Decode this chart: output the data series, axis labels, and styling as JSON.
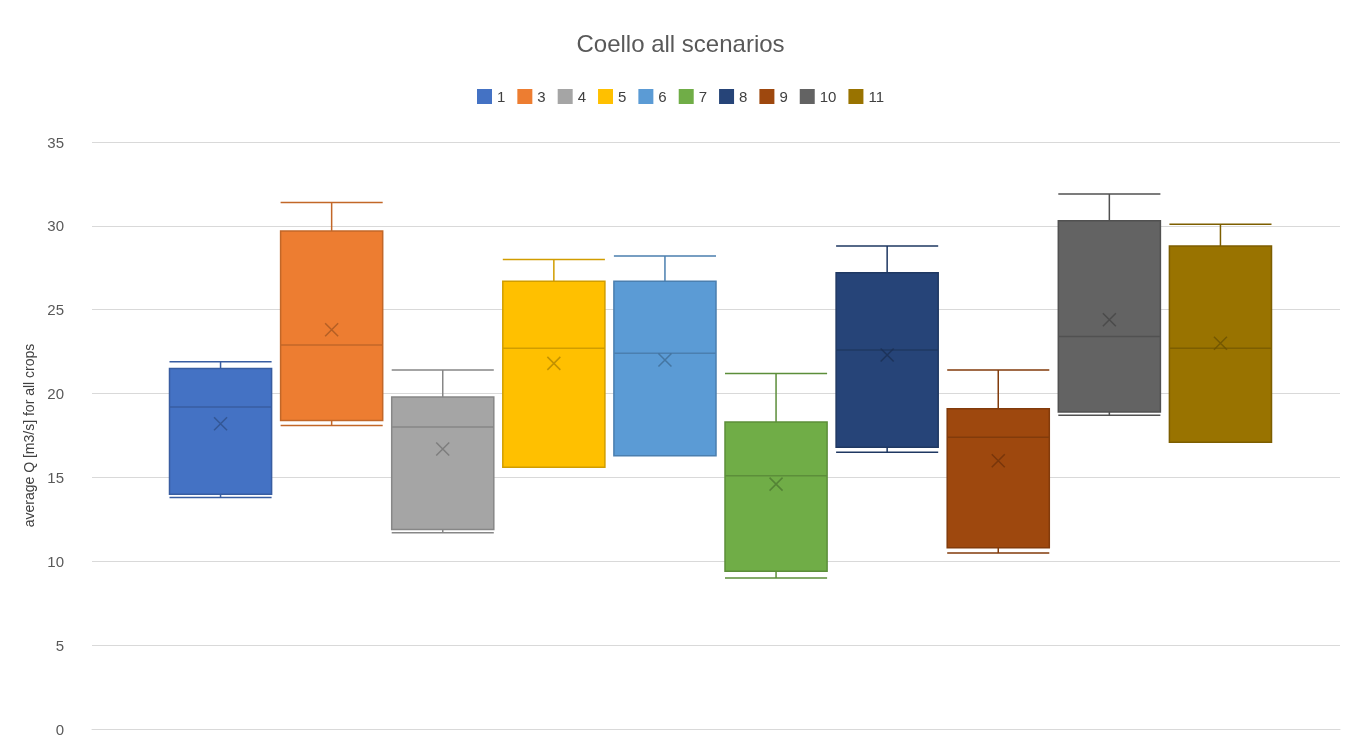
{
  "chart_data": {
    "type": "box",
    "title": "Coello all scenarios",
    "ylabel": "average Q [m3/s] for all crops",
    "categories": [
      null
    ],
    "ylim": [
      0,
      35
    ],
    "yticks": [
      0,
      5,
      10,
      15,
      20,
      25,
      30,
      35
    ],
    "grid": "y",
    "legend": "top",
    "tick_labels": "y",
    "series": [
      {
        "name": "1",
        "color": "#4472c4",
        "boxes": [
          {
            "low": 13.8,
            "q1": 14.0,
            "median": 19.2,
            "q3": 21.5,
            "high": 21.9,
            "mean": 18.2
          }
        ]
      },
      {
        "name": "3",
        "color": "#ed7d31",
        "boxes": [
          {
            "low": 18.1,
            "q1": 18.4,
            "median": 22.9,
            "q3": 29.7,
            "high": 31.4,
            "mean": 23.8
          }
        ]
      },
      {
        "name": "4",
        "color": "#a5a5a5",
        "boxes": [
          {
            "low": 11.7,
            "q1": 11.9,
            "median": 18.0,
            "q3": 19.8,
            "high": 21.4,
            "mean": 16.7
          }
        ]
      },
      {
        "name": "5",
        "color": "#ffc000",
        "boxes": [
          {
            "low": 15.6,
            "q1": 15.6,
            "median": 22.7,
            "q3": 26.7,
            "high": 28.0,
            "mean": 21.8
          }
        ]
      },
      {
        "name": "6",
        "color": "#5b9bd5",
        "boxes": [
          {
            "low": 16.3,
            "q1": 16.3,
            "median": 22.4,
            "q3": 26.7,
            "high": 28.2,
            "mean": 22.0
          }
        ]
      },
      {
        "name": "7",
        "color": "#70ad47",
        "boxes": [
          {
            "low": 9.0,
            "q1": 9.4,
            "median": 15.1,
            "q3": 18.3,
            "high": 21.2,
            "mean": 14.6
          }
        ]
      },
      {
        "name": "8",
        "color": "#264478",
        "boxes": [
          {
            "low": 16.5,
            "q1": 16.8,
            "median": 22.6,
            "q3": 27.2,
            "high": 28.8,
            "mean": 22.3
          }
        ]
      },
      {
        "name": "9",
        "color": "#9e480e",
        "boxes": [
          {
            "low": 10.5,
            "q1": 10.8,
            "median": 17.4,
            "q3": 19.1,
            "high": 21.4,
            "mean": 16.0
          }
        ]
      },
      {
        "name": "10",
        "color": "#636363",
        "boxes": [
          {
            "low": 18.7,
            "q1": 18.9,
            "median": 23.4,
            "q3": 30.3,
            "high": 31.9,
            "mean": 24.4
          }
        ]
      },
      {
        "name": "11",
        "color": "#997300",
        "boxes": [
          {
            "low": 17.1,
            "q1": 17.1,
            "median": 22.7,
            "q3": 28.8,
            "high": 30.1,
            "mean": 23.0
          }
        ]
      }
    ]
  }
}
